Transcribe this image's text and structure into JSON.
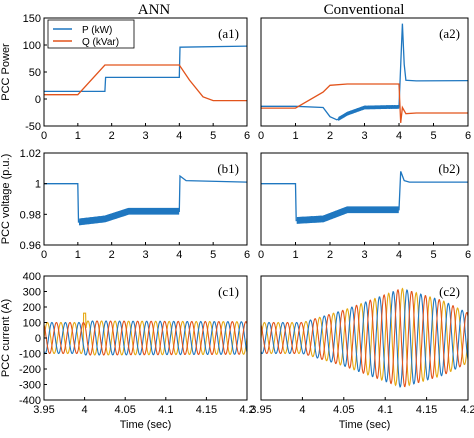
{
  "column_titles": {
    "left": "ANN",
    "right": "Conventional"
  },
  "colors": {
    "blue": "#1f77c0",
    "orange": "#e2531b",
    "yellow": "#e6a914",
    "axis": "#000000",
    "grid": "#d0d0d0"
  },
  "chart_data": [
    {
      "id": "a1",
      "type": "line",
      "panel_label": "(a1)",
      "ylabel": "PCC Power",
      "xlabel": "",
      "xlim": [
        0,
        6
      ],
      "ylim": [
        -50,
        150
      ],
      "xticks": [
        "0",
        "1",
        "2",
        "3",
        "4",
        "5",
        "6"
      ],
      "yticks": [
        "-50",
        "0",
        "50",
        "100",
        "150"
      ],
      "legend": {
        "placement": "top-left",
        "entries": [
          "P (kW)",
          "Q (kVar)"
        ]
      },
      "series": [
        {
          "name": "P (kW)",
          "color": "blue",
          "x": [
            0,
            1,
            1.8,
            1.82,
            4,
            4.02,
            6
          ],
          "y": [
            14,
            14,
            14,
            40,
            40,
            96,
            98
          ]
        },
        {
          "name": "Q (kVar)",
          "color": "orange",
          "x": [
            0,
            1,
            1.8,
            4,
            4.3,
            4.7,
            5,
            6
          ],
          "y": [
            8,
            8,
            63,
            63,
            35,
            4,
            -3,
            -3
          ]
        }
      ]
    },
    {
      "id": "a2",
      "type": "line",
      "panel_label": "(a2)",
      "ylabel": "",
      "xlabel": "",
      "xlim": [
        0,
        6
      ],
      "ylim": [
        -50,
        300
      ],
      "xticks": [
        "0",
        "1",
        "2",
        "3",
        "4",
        "5",
        "6"
      ],
      "yticks": [],
      "series": [
        {
          "name": "P (kW)",
          "color": "blue",
          "x": [
            0,
            1,
            1.8,
            2,
            2.2,
            2.5,
            3,
            4,
            4.1,
            4.15,
            4.2,
            4.5,
            6
          ],
          "y": [
            14,
            14,
            10,
            -20,
            -30,
            -10,
            10,
            12,
            282,
            150,
            98,
            96,
            97
          ]
        },
        {
          "name": "Q (kVar)",
          "color": "orange",
          "x": [
            0,
            1,
            1.8,
            2,
            2.5,
            4,
            4.05,
            4.1,
            4.2,
            4.5,
            6
          ],
          "y": [
            8,
            8,
            60,
            82,
            86,
            86,
            -40,
            10,
            -10,
            -8,
            -8
          ]
        }
      ]
    },
    {
      "id": "b1",
      "type": "line",
      "panel_label": "(b1)",
      "ylabel": "PCC voltage (p.u.)",
      "xlabel": "",
      "xlim": [
        0,
        6
      ],
      "ylim": [
        0.96,
        1.02
      ],
      "xticks": [
        "0",
        "1",
        "2",
        "3",
        "4",
        "5",
        "6"
      ],
      "yticks": [
        "0.96",
        "0.98",
        "1",
        "1.02"
      ],
      "series": [
        {
          "name": "",
          "color": "blue",
          "x": [
            0,
            1,
            1.02,
            1.8,
            2.5,
            4,
            4.02,
            4.2,
            6
          ],
          "y": [
            1.0,
            1.0,
            0.975,
            0.977,
            0.982,
            0.982,
            1.005,
            1.002,
            1.001
          ]
        }
      ]
    },
    {
      "id": "b2",
      "type": "line",
      "panel_label": "(b2)",
      "ylabel": "",
      "xlabel": "",
      "xlim": [
        0,
        6
      ],
      "ylim": [
        0.96,
        1.02
      ],
      "xticks": [
        "0",
        "1",
        "2",
        "3",
        "4",
        "5",
        "6"
      ],
      "yticks": [],
      "series": [
        {
          "name": "",
          "color": "blue",
          "x": [
            0,
            1,
            1.02,
            1.8,
            2.5,
            4,
            4.05,
            4.15,
            4.3,
            6
          ],
          "y": [
            1.0,
            1.0,
            0.976,
            0.977,
            0.983,
            0.983,
            1.008,
            1.002,
            1.001,
            1.001
          ]
        }
      ]
    },
    {
      "id": "c1",
      "type": "line",
      "panel_label": "(c1)",
      "ylabel": "PCC current (A)",
      "xlabel": "Time (sec)",
      "xlim": [
        3.95,
        4.2
      ],
      "ylim": [
        -400,
        400
      ],
      "xticks": [
        "3.95",
        "4",
        "4.05",
        "4.1",
        "4.15",
        "4.2"
      ],
      "yticks": [
        "-400",
        "-300",
        "-200",
        "-100",
        "0",
        "100",
        "200",
        "300",
        "400"
      ],
      "waveform": {
        "frequency_hz": 60,
        "phases": [
          "yellow",
          "blue",
          "orange"
        ],
        "amplitude": [
          [
            3.95,
            100
          ],
          [
            4.0,
            100
          ],
          [
            4.0,
            110
          ],
          [
            4.2,
            105
          ]
        ],
        "spike": {
          "x": 4.0,
          "y": 160
        }
      }
    },
    {
      "id": "c2",
      "type": "line",
      "panel_label": "(c2)",
      "ylabel": "",
      "xlabel": "Time (sec)",
      "xlim": [
        3.95,
        4.2
      ],
      "ylim": [
        -400,
        400
      ],
      "xticks": [
        "3.95",
        "4",
        "4.05",
        "4.1",
        "4.15",
        "4.2"
      ],
      "yticks": [],
      "waveform": {
        "frequency_hz": 60,
        "phases": [
          "yellow",
          "blue",
          "orange"
        ],
        "amplitude": [
          [
            3.95,
            100
          ],
          [
            4.0,
            100
          ],
          [
            4.05,
            180
          ],
          [
            4.12,
            320
          ],
          [
            4.17,
            240
          ],
          [
            4.2,
            160
          ]
        ]
      }
    }
  ]
}
